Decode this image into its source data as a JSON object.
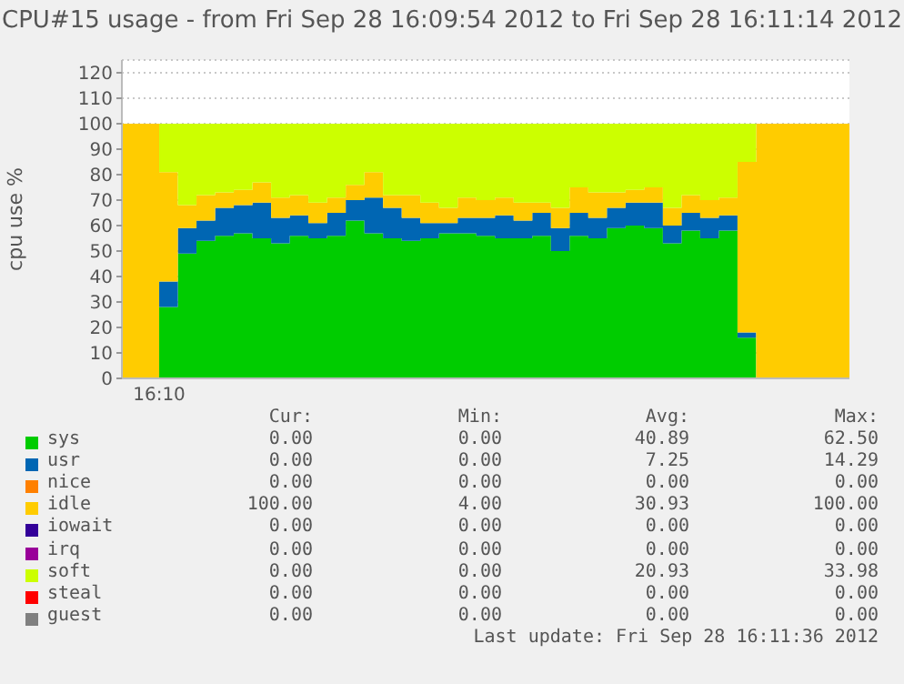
{
  "chart_data": {
    "type": "area",
    "stacked": true,
    "title": "CPU#15 usage - from Fri Sep 28 16:09:54 2012 to Fri Sep 28 16:11:14 2012",
    "ylabel": "cpu use %",
    "categories": [
      null,
      null,
      "16:10",
      null,
      null,
      null,
      null,
      null,
      null,
      null,
      null,
      null,
      null,
      null,
      null,
      null,
      null,
      null,
      null,
      null,
      null,
      null,
      null,
      null,
      null,
      null,
      null,
      null,
      null,
      null,
      null,
      null,
      null,
      null,
      null,
      null,
      null,
      null,
      null,
      null
    ],
    "series": [
      {
        "name": "sys",
        "color": "#00cc00",
        "values": [
          0,
          0,
          28,
          49,
          54,
          56,
          57,
          55,
          53,
          56,
          55,
          56,
          62,
          57,
          55,
          54,
          55,
          57,
          57,
          56,
          55,
          55,
          56,
          50,
          56,
          55,
          59,
          60,
          59,
          53,
          58,
          55,
          58,
          16,
          0,
          0,
          0,
          0,
          0,
          0
        ]
      },
      {
        "name": "usr",
        "color": "#0066b3",
        "values": [
          0,
          0,
          10,
          10,
          8,
          11,
          11,
          14,
          10,
          8,
          6,
          9,
          8,
          14,
          12,
          9,
          6,
          4,
          6,
          7,
          9,
          7,
          9,
          9,
          9,
          8,
          8,
          9,
          10,
          7,
          7,
          8,
          6,
          2,
          0,
          0,
          0,
          0,
          0,
          0
        ]
      },
      {
        "name": "nice",
        "color": "#ff8000",
        "values": [
          null,
          null,
          null,
          null,
          null,
          null,
          null,
          null,
          null,
          null,
          null,
          null,
          null,
          null,
          null,
          null,
          null,
          null,
          null,
          null,
          null,
          null,
          null,
          null,
          null,
          null,
          null,
          null,
          null,
          null,
          null,
          null,
          null,
          null,
          null,
          null,
          null,
          null,
          null,
          null
        ]
      },
      {
        "name": "idle",
        "color": "#ffcc00",
        "values": [
          100,
          100,
          43,
          9,
          10,
          6,
          6,
          8,
          8,
          8,
          8,
          6,
          6,
          10,
          5,
          9,
          8,
          6,
          8,
          7,
          7,
          7,
          4,
          8,
          10,
          10,
          6,
          5,
          6,
          7,
          7,
          7,
          7,
          67,
          100,
          100,
          100,
          100,
          100,
          100
        ]
      },
      {
        "name": "iowait",
        "color": "#330099",
        "values": [
          null,
          null,
          null,
          null,
          null,
          null,
          null,
          null,
          null,
          null,
          null,
          null,
          null,
          null,
          null,
          null,
          null,
          null,
          null,
          null,
          null,
          null,
          null,
          null,
          null,
          null,
          null,
          null,
          null,
          null,
          null,
          null,
          null,
          null,
          null,
          null,
          null,
          null,
          null,
          null
        ]
      },
      {
        "name": "irq",
        "color": "#990099",
        "values": [
          null,
          null,
          null,
          null,
          null,
          null,
          null,
          null,
          null,
          null,
          null,
          null,
          null,
          null,
          null,
          null,
          null,
          null,
          null,
          null,
          null,
          null,
          null,
          null,
          null,
          null,
          null,
          null,
          null,
          null,
          null,
          null,
          null,
          null,
          null,
          null,
          null,
          null,
          null,
          null
        ]
      },
      {
        "name": "soft",
        "color": "#ccff00",
        "values": [
          0,
          0,
          19,
          32,
          28,
          27,
          26,
          23,
          29,
          28,
          31,
          29,
          24,
          19,
          28,
          28,
          31,
          33,
          29,
          30,
          29,
          31,
          31,
          33,
          25,
          27,
          27,
          26,
          25,
          33,
          28,
          30,
          29,
          15,
          0,
          0,
          0,
          0,
          0,
          0
        ]
      },
      {
        "name": "steal",
        "color": "#ff0000",
        "values": [
          null,
          null,
          null,
          null,
          null,
          null,
          null,
          null,
          null,
          null,
          null,
          null,
          null,
          null,
          null,
          null,
          null,
          null,
          null,
          null,
          null,
          null,
          null,
          null,
          null,
          null,
          null,
          null,
          null,
          null,
          null,
          null,
          null,
          null,
          null,
          null,
          null,
          null,
          null,
          null
        ]
      },
      {
        "name": "guest",
        "color": "#808080",
        "values": [
          null,
          null,
          null,
          null,
          null,
          null,
          null,
          null,
          null,
          null,
          null,
          null,
          null,
          null,
          null,
          null,
          null,
          null,
          null,
          null,
          null,
          null,
          null,
          null,
          null,
          null,
          null,
          null,
          null,
          null,
          null,
          null,
          null,
          null,
          null,
          null,
          null,
          null,
          null,
          null
        ]
      }
    ],
    "ylim": [
      0,
      125
    ],
    "yticks": [
      0,
      10,
      20,
      30,
      40,
      50,
      60,
      70,
      80,
      90,
      100,
      110,
      120
    ],
    "grid": true,
    "legend": "bottom",
    "annotations": [
      "Cur:",
      "Min:",
      "Avg:",
      "Max:",
      "0.00",
      "0.00",
      "40.89",
      "62.50",
      "0.00",
      "0.00",
      "7.25",
      "14.29",
      "0.00",
      "0.00",
      "0.00",
      "0.00",
      "100.00",
      "4.00",
      "30.93",
      "100.00",
      "0.00",
      "0.00",
      "0.00",
      "0.00",
      "0.00",
      "0.00",
      "0.00",
      "0.00",
      "0.00",
      "0.00",
      "20.93",
      "33.98",
      "0.00",
      "0.00",
      "0.00",
      "0.00",
      "0.00",
      "0.00",
      "0.00",
      "0.00",
      "Last update: Fri Sep 28 16:11:36 2012"
    ]
  }
}
